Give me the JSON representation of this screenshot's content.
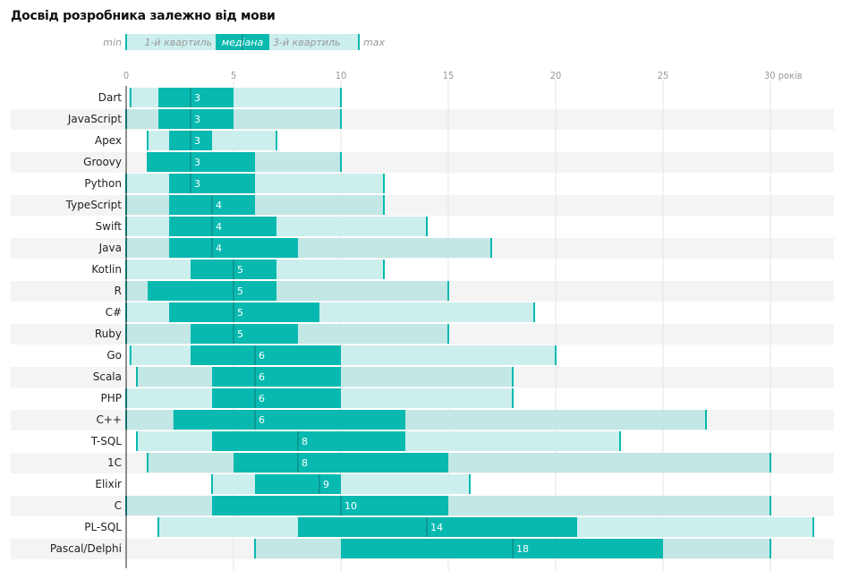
{
  "title": "Досвід розробника залежно від мови",
  "legend": {
    "min": "min",
    "q1": "1-й квартиль",
    "median": "медіана",
    "q3": "3-й квартиль",
    "max": "max"
  },
  "colors": {
    "box": "#08b9b0",
    "whisker_light": "#ccefed",
    "whisker_on_stripe": "#c3e7e5",
    "median_line": "#0a8f88",
    "stripe": "#f4f4f4",
    "grid": "#e6e6e6",
    "axis": "#222222",
    "cap": "#08b9b0"
  },
  "chart_data": {
    "type": "boxplot",
    "title": "Досвід розробника залежно від мови",
    "xlabel": "",
    "ylabel": "",
    "x_unit_label": "років",
    "xlim": [
      0,
      33
    ],
    "xticks": [
      0,
      5,
      10,
      15,
      20,
      25,
      30
    ],
    "xtick_labels": [
      "0",
      "5",
      "10",
      "15",
      "20",
      "25",
      "30 років"
    ],
    "grid": true,
    "legend_position": "top",
    "categories": [
      "Dart",
      "JavaScript",
      "Apex",
      "Groovy",
      "Python",
      "TypeScript",
      "Swift",
      "Java",
      "Kotlin",
      "R",
      "C#",
      "Ruby",
      "Go",
      "Scala",
      "PHP",
      "C++",
      "T-SQL",
      "1C",
      "Elixir",
      "C",
      "PL-SQL",
      "Pascal/Delphi"
    ],
    "series": [
      {
        "name": "Dart",
        "min": 0.2,
        "q1": 1.5,
        "median": 3,
        "q3": 5,
        "max": 10
      },
      {
        "name": "JavaScript",
        "min": 0,
        "q1": 1.5,
        "median": 3,
        "q3": 5,
        "max": 10
      },
      {
        "name": "Apex",
        "min": 1,
        "q1": 2,
        "median": 3,
        "q3": 4,
        "max": 7
      },
      {
        "name": "Groovy",
        "min": 1,
        "q1": 1,
        "median": 3,
        "q3": 6,
        "max": 10
      },
      {
        "name": "Python",
        "min": 0,
        "q1": 2,
        "median": 3,
        "q3": 6,
        "max": 12
      },
      {
        "name": "TypeScript",
        "min": 0,
        "q1": 2,
        "median": 4,
        "q3": 6,
        "max": 12
      },
      {
        "name": "Swift",
        "min": 0,
        "q1": 2,
        "median": 4,
        "q3": 7,
        "max": 14
      },
      {
        "name": "Java",
        "min": 0,
        "q1": 2,
        "median": 4,
        "q3": 8,
        "max": 17
      },
      {
        "name": "Kotlin",
        "min": 0,
        "q1": 3,
        "median": 5,
        "q3": 7,
        "max": 12
      },
      {
        "name": "R",
        "min": 0,
        "q1": 1,
        "median": 5,
        "q3": 7,
        "max": 15
      },
      {
        "name": "C#",
        "min": 0,
        "q1": 2,
        "median": 5,
        "q3": 9,
        "max": 19
      },
      {
        "name": "Ruby",
        "min": 0,
        "q1": 3,
        "median": 5,
        "q3": 8,
        "max": 15
      },
      {
        "name": "Go",
        "min": 0.2,
        "q1": 3,
        "median": 6,
        "q3": 10,
        "max": 20
      },
      {
        "name": "Scala",
        "min": 0.5,
        "q1": 4,
        "median": 6,
        "q3": 10,
        "max": 18
      },
      {
        "name": "PHP",
        "min": 0,
        "q1": 4,
        "median": 6,
        "q3": 10,
        "max": 18
      },
      {
        "name": "C++",
        "min": 0,
        "q1": 2.2,
        "median": 6,
        "q3": 13,
        "max": 27
      },
      {
        "name": "T-SQL",
        "min": 0.5,
        "q1": 4,
        "median": 8,
        "q3": 13,
        "max": 23
      },
      {
        "name": "1C",
        "min": 1,
        "q1": 5,
        "median": 8,
        "q3": 15,
        "max": 30
      },
      {
        "name": "Elixir",
        "min": 4,
        "q1": 6,
        "median": 9,
        "q3": 10,
        "max": 16
      },
      {
        "name": "C",
        "min": 0,
        "q1": 4,
        "median": 10,
        "q3": 15,
        "max": 30
      },
      {
        "name": "PL-SQL",
        "min": 1.5,
        "q1": 8,
        "median": 14,
        "q3": 21,
        "max": 32
      },
      {
        "name": "Pascal/Delphi",
        "min": 6,
        "q1": 10,
        "median": 18,
        "q3": 25,
        "max": 30
      }
    ]
  }
}
